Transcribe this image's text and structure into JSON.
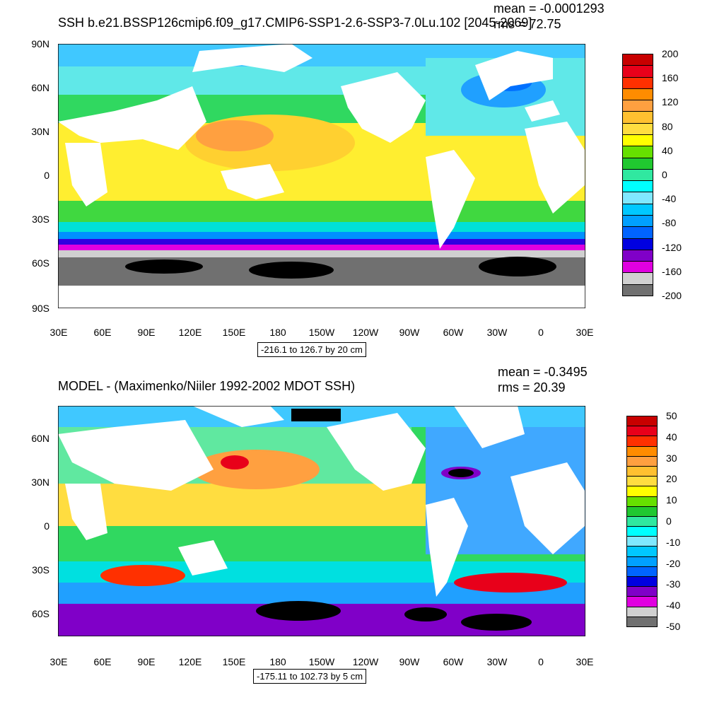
{
  "colors": {
    "land": "#ffffff",
    "frame": "#000000"
  },
  "top": {
    "title": "SSH b.e21.BSSP126cmip6.f09_g17.CMIP6-SSP1-2.6-SSP3-7.0Lu.102 [2045-2069]",
    "mean": "mean = -0.0001293",
    "rms": "rms = 72.75",
    "contour_info": "-216.1 to 126.7 by 20 cm",
    "lat_labels": [
      "90N",
      "60N",
      "30N",
      "0",
      "30S",
      "60S",
      "90S"
    ],
    "lon_labels": [
      "30E",
      "60E",
      "90E",
      "120E",
      "150E",
      "180",
      "150W",
      "120W",
      "90W",
      "60W",
      "30W",
      "0",
      "30E"
    ],
    "cbar_labels": [
      "200",
      "160",
      "120",
      "80",
      "40",
      "0",
      "-40",
      "-80",
      "-120",
      "-160",
      "-200"
    ],
    "cbar_colors": [
      "#c80000",
      "#e8001a",
      "#ff3000",
      "#ff8c00",
      "#ffa040",
      "#ffc030",
      "#ffdd40",
      "#ffff00",
      "#66e000",
      "#20c830",
      "#30e8a0",
      "#00ffff",
      "#80e8ff",
      "#00c8ff",
      "#00a0ff",
      "#0064ff",
      "#0000e0",
      "#8000c8",
      "#e000e0",
      "#d0d0d0",
      "#707070"
    ]
  },
  "bottom": {
    "title": "MODEL - (Maximenko/Niiler 1992-2002 MDOT SSH)",
    "mean": "mean = -0.3495",
    "rms": "rms = 20.39",
    "contour_info": "-175.11 to 102.73 by 5 cm",
    "lat_labels": [
      "60N",
      "30N",
      "0",
      "30S",
      "60S"
    ],
    "lon_labels": [
      "30E",
      "60E",
      "90E",
      "120E",
      "150E",
      "180",
      "150W",
      "120W",
      "90W",
      "60W",
      "30W",
      "0",
      "30E"
    ],
    "cbar_labels": [
      "50",
      "40",
      "30",
      "20",
      "10",
      "0",
      "-10",
      "-20",
      "-30",
      "-40",
      "-50"
    ],
    "cbar_colors": [
      "#c80000",
      "#e8001a",
      "#ff3000",
      "#ff8c00",
      "#ffa040",
      "#ffc030",
      "#ffdd40",
      "#ffff00",
      "#66e000",
      "#20c830",
      "#30e8a0",
      "#00ffff",
      "#80e8ff",
      "#00c8ff",
      "#00a0ff",
      "#0064ff",
      "#0000e0",
      "#8000c8",
      "#e000e0",
      "#d0d0d0",
      "#707070"
    ]
  }
}
